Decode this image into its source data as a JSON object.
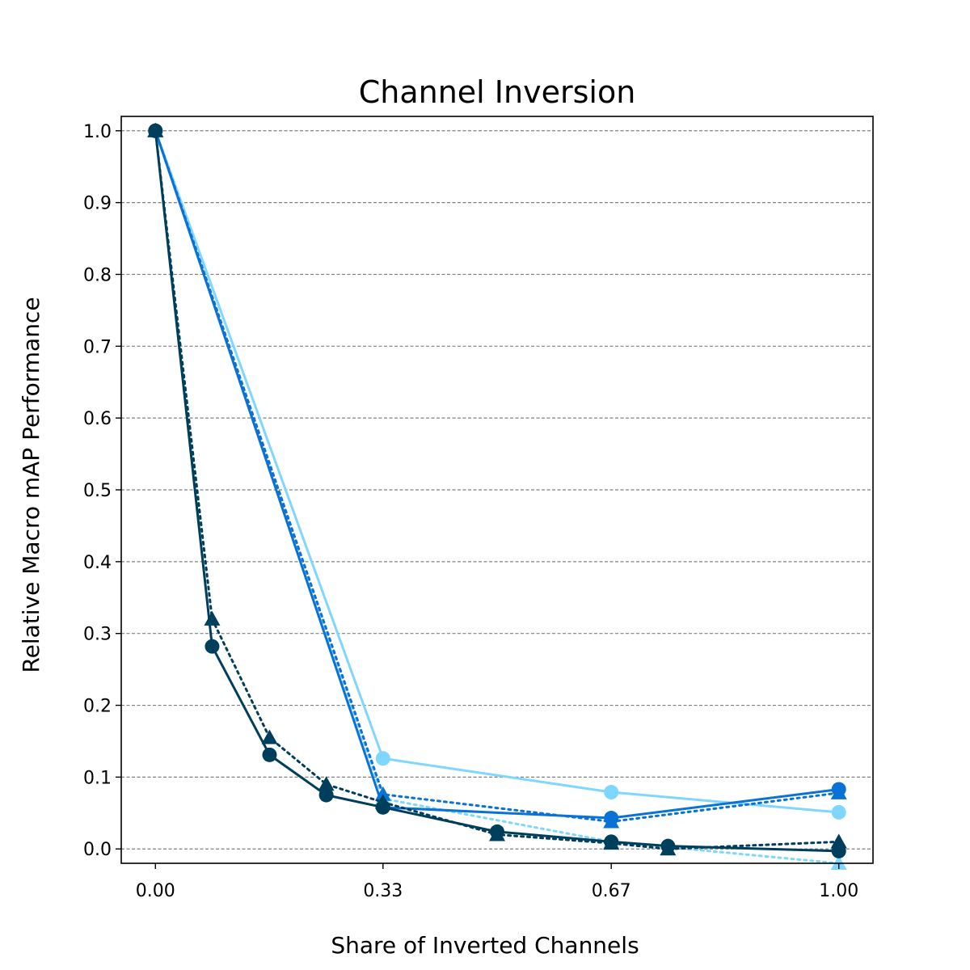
{
  "chart_data": {
    "type": "line",
    "title": "Channel Inversion",
    "xlabel": "Share of Inverted Channels",
    "ylabel": "Relative Macro mAP Performance",
    "xlim": [
      -0.05,
      1.05
    ],
    "ylim": [
      -0.02,
      1.02
    ],
    "xticks": [
      {
        "value": 0.0,
        "label": "0.00"
      },
      {
        "value": 0.333,
        "label": "0.33"
      },
      {
        "value": 0.667,
        "label": "0.67"
      },
      {
        "value": 1.0,
        "label": "1.00"
      }
    ],
    "yticks": [
      {
        "value": 0.0,
        "label": "0.0"
      },
      {
        "value": 0.1,
        "label": "0.1"
      },
      {
        "value": 0.2,
        "label": "0.2"
      },
      {
        "value": 0.3,
        "label": "0.3"
      },
      {
        "value": 0.4,
        "label": "0.4"
      },
      {
        "value": 0.5,
        "label": "0.5"
      },
      {
        "value": 0.6,
        "label": "0.6"
      },
      {
        "value": 0.7,
        "label": "0.7"
      },
      {
        "value": 0.8,
        "label": "0.8"
      },
      {
        "value": 0.9,
        "label": "0.9"
      },
      {
        "value": 1.0,
        "label": "1.0"
      }
    ],
    "grid": "horizontal dashed",
    "legend": "none",
    "series": [
      {
        "color": "#003f5c",
        "line": "solid",
        "marker": "circle",
        "x": [
          0.0,
          0.083,
          0.167,
          0.25,
          0.333,
          0.5,
          0.667,
          0.75,
          1.0
        ],
        "y": [
          1.0,
          0.282,
          0.131,
          0.075,
          0.058,
          0.024,
          0.01,
          0.004,
          -0.003
        ]
      },
      {
        "color": "#003f5c",
        "line": "dotted",
        "marker": "triangle",
        "x": [
          0.0,
          0.083,
          0.167,
          0.25,
          0.333,
          0.5,
          0.667,
          0.75,
          1.0
        ],
        "y": [
          1.0,
          0.32,
          0.155,
          0.09,
          0.065,
          0.02,
          0.008,
          0.0,
          0.01
        ]
      },
      {
        "color": "#0a72d6",
        "line": "solid",
        "marker": "circle",
        "x": [
          0.0,
          0.333,
          0.667,
          1.0
        ],
        "y": [
          1.0,
          0.058,
          0.043,
          0.083
        ]
      },
      {
        "color": "#0a72d6",
        "line": "dotted",
        "marker": "triangle",
        "x": [
          0.0,
          0.333,
          0.667,
          1.0
        ],
        "y": [
          1.0,
          0.076,
          0.038,
          0.078
        ]
      },
      {
        "color": "#7fd6ff",
        "line": "solid",
        "marker": "circle",
        "x": [
          0.0,
          0.333,
          0.667,
          1.0
        ],
        "y": [
          1.0,
          0.126,
          0.079,
          0.051
        ]
      },
      {
        "color": "#7fd6ff",
        "line": "dotted",
        "marker": "triangle",
        "x": [
          0.0,
          0.333,
          0.667,
          1.0
        ],
        "y": [
          1.0,
          0.07,
          0.01,
          -0.02
        ]
      }
    ]
  }
}
